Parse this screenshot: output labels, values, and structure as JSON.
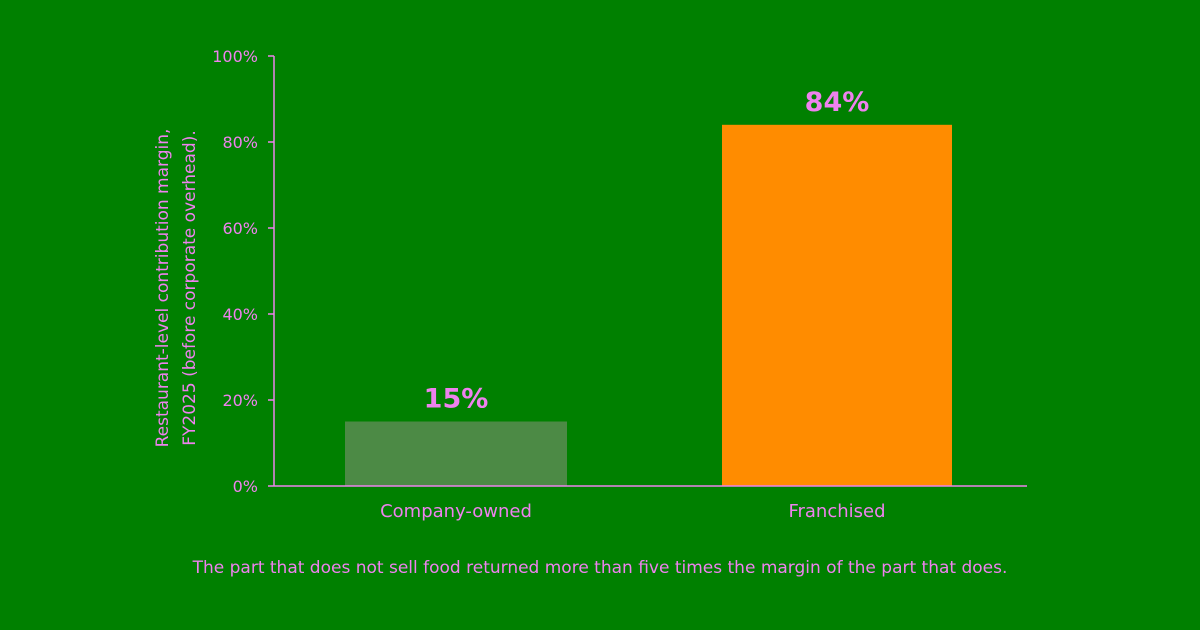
{
  "chart_data": {
    "type": "bar",
    "categories": [
      "Company-owned",
      "Franchised"
    ],
    "values": [
      15,
      84
    ],
    "value_labels": [
      "15%",
      "84%"
    ],
    "ylabel": "Restaurant-level contribution margin, FY2025 (before corporate overhead).",
    "ylabel_lines": [
      "Restaurant-level contribution margin,",
      "FY2025 (before corporate overhead)."
    ],
    "ylim": [
      0,
      100
    ],
    "yticks": [
      0,
      20,
      40,
      60,
      80,
      100
    ],
    "ytick_labels": [
      "0%",
      "20%",
      "40%",
      "60%",
      "80%",
      "100%"
    ],
    "grid": false,
    "legend": "none",
    "caption": "The part that does not sell food returned more than five times the margin of the part that does."
  },
  "colors": {
    "background": "#008000",
    "text": "#ee82ee",
    "axis": "#ee82ee",
    "bars": [
      "#4c8a45",
      "#ff8c00"
    ]
  }
}
